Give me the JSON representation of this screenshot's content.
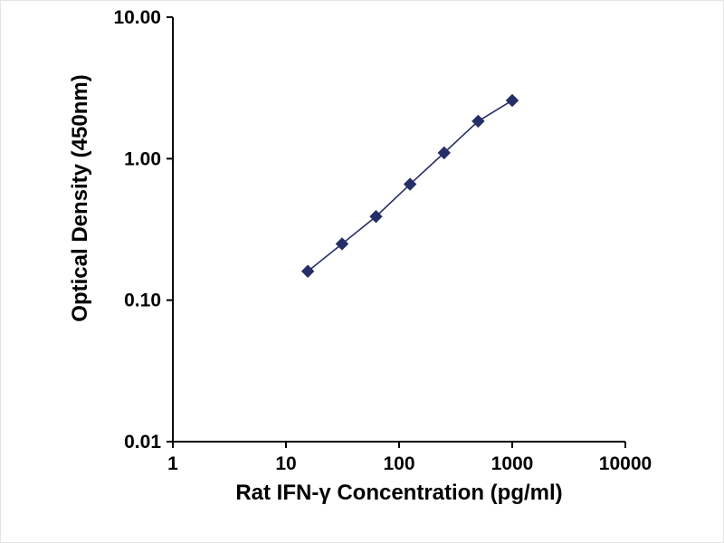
{
  "figure": {
    "background": "#ffffff",
    "border_color": "#e4e4e4"
  },
  "chart_data": {
    "type": "line",
    "title": "",
    "xlabel": "Rat IFN-γ Concentration (pg/ml)",
    "ylabel": "Optical Density (450nm)",
    "x_scale": "log",
    "y_scale": "log",
    "xlim": [
      1,
      10000
    ],
    "ylim": [
      0.01,
      10
    ],
    "grid": false,
    "legend": "none",
    "axis_color": "#000000",
    "x_ticks": {
      "values": [
        1,
        10,
        100,
        1000,
        10000
      ],
      "labels": [
        "1",
        "10",
        "100",
        "1000",
        "10000"
      ]
    },
    "y_ticks": {
      "values": [
        0.01,
        0.1,
        1,
        10
      ],
      "labels": [
        "0.01",
        "0.10",
        "1.00",
        "10.00"
      ]
    },
    "series": [
      {
        "marker": "diamond",
        "color": "#262e66",
        "line_width": 1.6,
        "marker_size": 6.5,
        "x": [
          15.6,
          31.3,
          62.5,
          125,
          250,
          500,
          1000
        ],
        "y": [
          0.16,
          0.25,
          0.39,
          0.66,
          1.1,
          1.84,
          2.58
        ]
      }
    ]
  }
}
